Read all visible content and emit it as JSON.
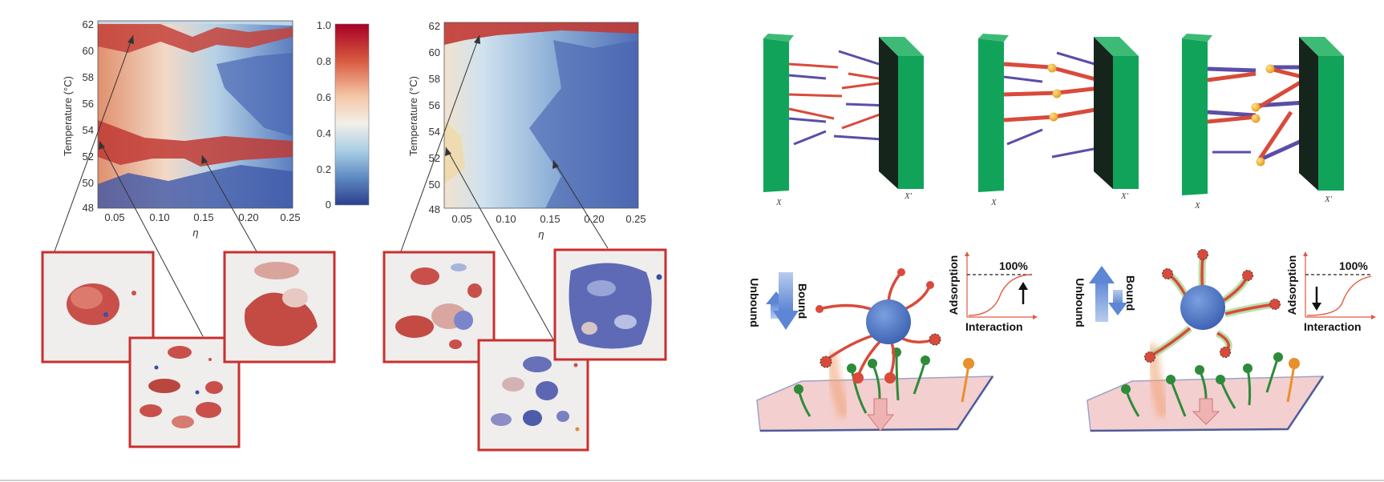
{
  "heatmap_left": {
    "y_label": "Temperature (°C)",
    "x_label": "η",
    "y_ticks": [
      "62",
      "60",
      "58",
      "56",
      "54",
      "52",
      "50",
      "48"
    ],
    "x_ticks": [
      "0.05",
      "0.10",
      "0.15",
      "0.20",
      "0.25"
    ]
  },
  "heatmap_right": {
    "y_label": "Temperature (°C)",
    "x_label": "η",
    "y_ticks": [
      "62",
      "60",
      "58",
      "56",
      "54",
      "52",
      "50",
      "48"
    ],
    "x_ticks": [
      "0.05",
      "0.10",
      "0.15",
      "0.20",
      "0.25"
    ]
  },
  "colorbar": {
    "ticks": [
      "1.0",
      "0.8",
      "0.6",
      "0.4",
      "0.2",
      "0"
    ]
  },
  "walls": {
    "left_label": "X",
    "right_label": "X'"
  },
  "adsorption_left": {
    "unbound": "Unbound",
    "bound": "Bound",
    "y_label": "Adsorption",
    "x_label": "Interaction",
    "percent": "100%"
  },
  "adsorption_right": {
    "unbound": "Unbound",
    "bound": "Bound",
    "y_label": "Adsorption",
    "x_label": "Interaction",
    "percent": "100%"
  },
  "colors": {
    "heat_red": "#b2182b",
    "heat_blue": "#3b4d9a",
    "wall_green": "#12a35a",
    "ligand_red": "#d94a3a",
    "receptor_green": "#2e8b3a",
    "surface_pink": "#f4cfcf",
    "particle_blue": "#4a74c9",
    "frame_red": "#c8302e"
  }
}
